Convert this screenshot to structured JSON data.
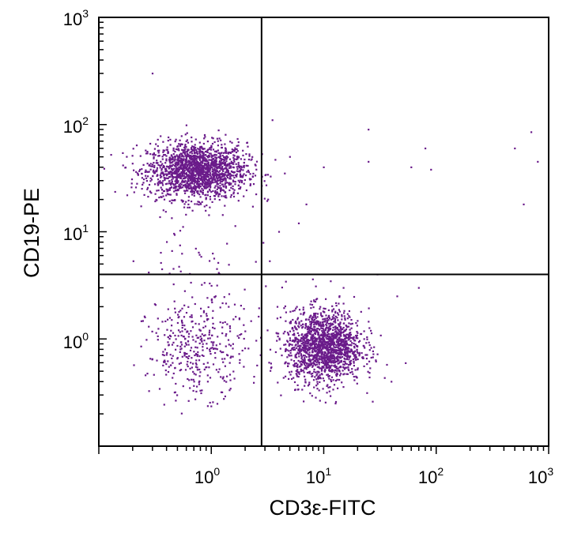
{
  "chart_data": {
    "type": "scatter",
    "title": "",
    "xlabel": "CD3ε-FITC",
    "ylabel": "CD19-PE",
    "xscale": "log",
    "yscale": "log",
    "xlim": [
      0.1,
      1000
    ],
    "ylim": [
      0.1,
      1000
    ],
    "x_tick_labels": [
      {
        "value": 1,
        "base": "10",
        "exp": "0"
      },
      {
        "value": 10,
        "base": "10",
        "exp": "1"
      },
      {
        "value": 100,
        "base": "10",
        "exp": "2"
      },
      {
        "value": 1000,
        "base": "10",
        "exp": "3"
      }
    ],
    "y_tick_labels": [
      {
        "value": 1,
        "base": "10",
        "exp": "0"
      },
      {
        "value": 10,
        "base": "10",
        "exp": "1"
      },
      {
        "value": 100,
        "base": "10",
        "exp": "2"
      },
      {
        "value": 1000,
        "base": "10",
        "exp": "3"
      }
    ],
    "quadrant_gates": {
      "x": 2.8,
      "y": 4.0
    },
    "grid": false,
    "point_color": "#6a1b8a",
    "populations": [
      {
        "center": [
          0.75,
          37
        ],
        "spread": [
          0.22,
          0.13
        ],
        "count": 1800
      },
      {
        "center": [
          10,
          0.85
        ],
        "spread": [
          0.17,
          0.17
        ],
        "count": 1600
      },
      {
        "center": [
          0.75,
          0.8
        ],
        "spread": [
          0.22,
          0.22
        ],
        "count": 380
      },
      {
        "center": [
          0.9,
          5
        ],
        "spread": [
          0.3,
          0.25
        ],
        "count": 60
      }
    ],
    "sparse_points": [
      [
        0.3,
        300
      ],
      [
        25,
        90
      ],
      [
        80,
        60
      ],
      [
        90,
        38
      ],
      [
        600,
        18
      ],
      [
        700,
        85
      ],
      [
        800,
        45
      ],
      [
        500,
        60
      ],
      [
        70,
        3
      ],
      [
        40,
        0.4
      ],
      [
        30,
        4
      ],
      [
        25,
        45
      ],
      [
        60,
        40
      ],
      [
        10,
        40
      ],
      [
        4,
        10
      ],
      [
        6,
        12
      ],
      [
        5,
        50
      ],
      [
        3.5,
        110
      ],
      [
        15,
        3
      ],
      [
        8,
        3.6
      ],
      [
        45,
        2.5
      ],
      [
        3.2,
        20
      ],
      [
        4.5,
        35
      ],
      [
        7,
        18
      ]
    ]
  }
}
